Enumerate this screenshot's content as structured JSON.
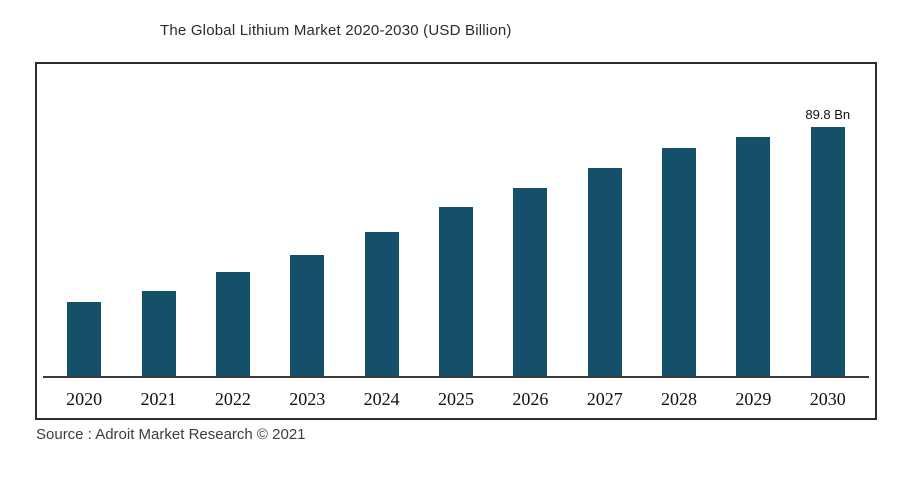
{
  "header": {
    "title": "The Global Lithium Market 2020-2030 (USD Billion)"
  },
  "footer": {
    "source": "Source : Adroit Market Research © 2021"
  },
  "colors": {
    "bar": "#14506a",
    "frame_border": "#2e2e2e",
    "text": "#111111"
  },
  "chart_data": {
    "type": "bar",
    "title": "The Global Lithium Market 2020-2030 (USD Billion)",
    "categories": [
      "2020",
      "2021",
      "2022",
      "2023",
      "2024",
      "2025",
      "2026",
      "2027",
      "2028",
      "2029",
      "2030"
    ],
    "values": [
      27,
      31,
      38,
      44,
      52,
      61,
      68,
      75,
      82,
      86,
      89.8
    ],
    "xlabel": "",
    "ylabel": "",
    "ylim": [
      0,
      100
    ],
    "grid": false,
    "legend": false,
    "bar_color": "#14506a",
    "annotations": [
      {
        "category": "2030",
        "text": "89.8 Bn"
      }
    ]
  }
}
